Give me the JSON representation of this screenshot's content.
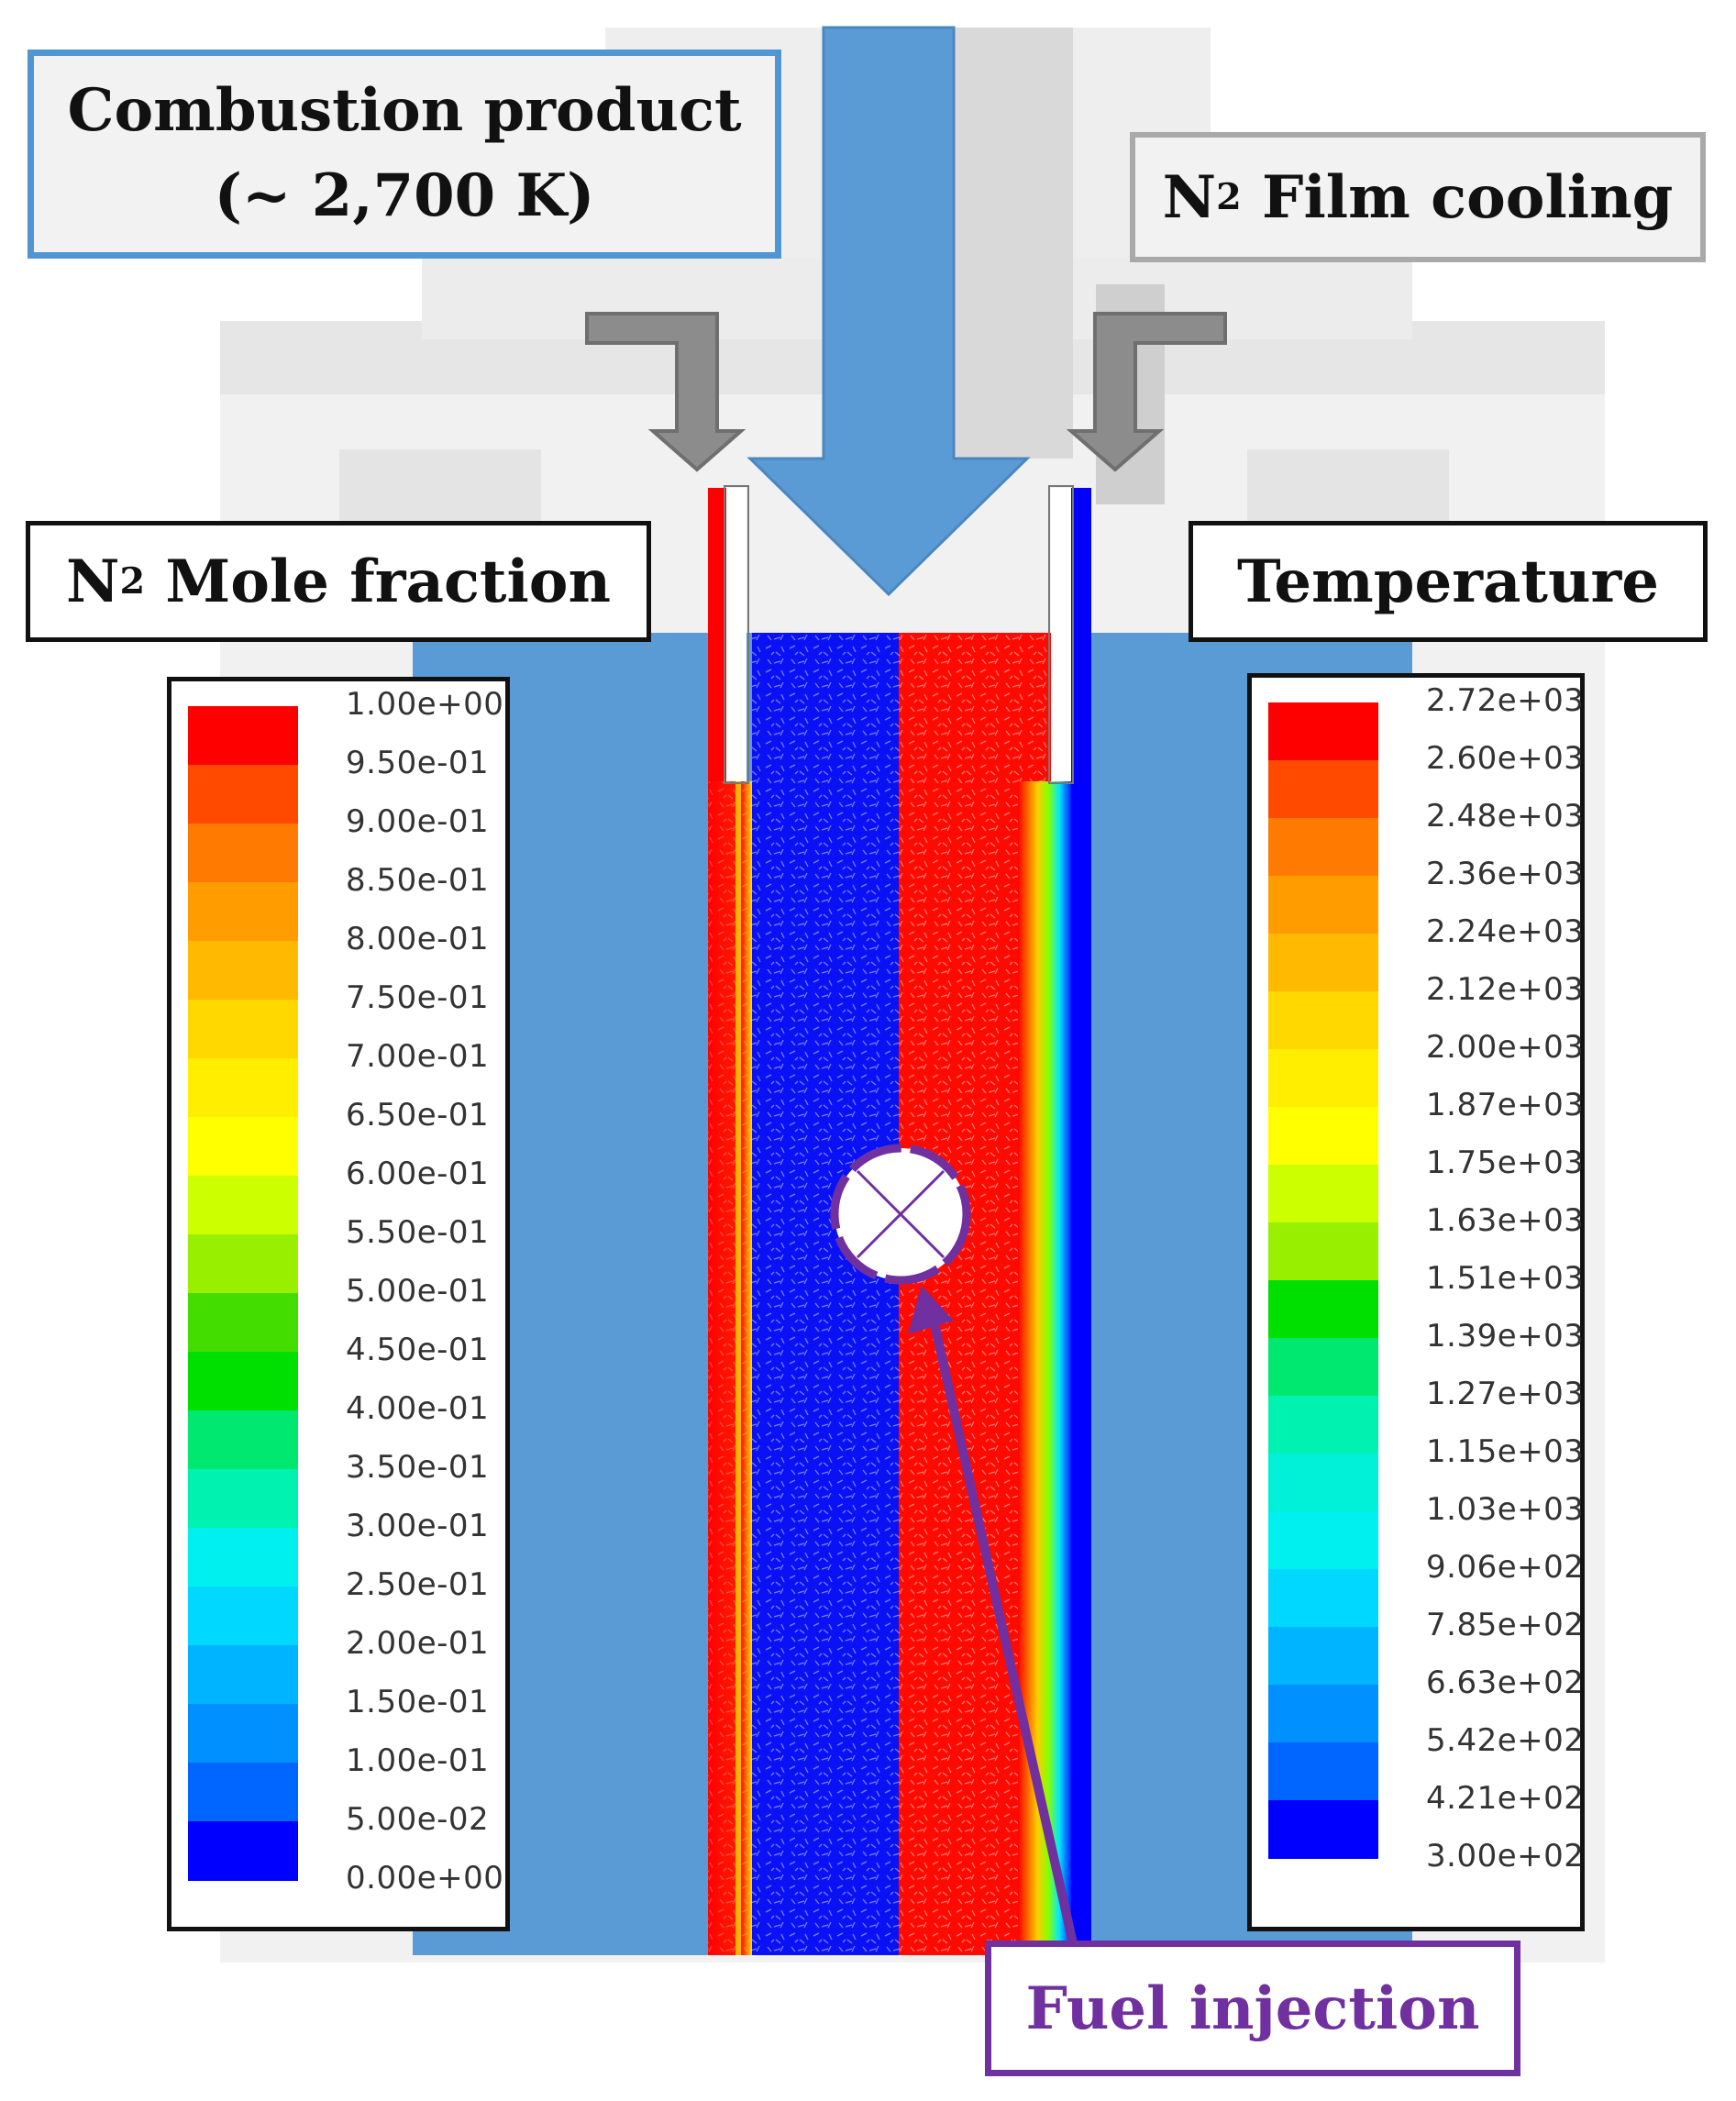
{
  "labels": {
    "combustion_line1": "Combustion product",
    "combustion_line2": "(~ 2,700 K)",
    "film_prefix": "N",
    "film_sub": "2",
    "film_suffix": " Film cooling",
    "mole_prefix": "N",
    "mole_sub": "2",
    "mole_suffix": " Mole fraction",
    "temperature": "Temperature",
    "fuel": "Fuel injection"
  },
  "legend_mole": {
    "ticks": [
      "1.00e+00",
      "9.50e-01",
      "9.00e-01",
      "8.50e-01",
      "8.00e-01",
      "7.50e-01",
      "7.00e-01",
      "6.50e-01",
      "6.00e-01",
      "5.50e-01",
      "5.00e-01",
      "4.50e-01",
      "4.00e-01",
      "3.50e-01",
      "3.00e-01",
      "2.50e-01",
      "2.00e-01",
      "1.50e-01",
      "1.00e-01",
      "5.00e-02",
      "0.00e+00"
    ],
    "colors": [
      "#ff0000",
      "#ff4a00",
      "#ff7a00",
      "#ff9c00",
      "#ffba00",
      "#ffd800",
      "#ffee00",
      "#ffff00",
      "#ccff00",
      "#99ef00",
      "#44dd00",
      "#00e000",
      "#00e870",
      "#00f2b0",
      "#00f0f0",
      "#00d8ff",
      "#00b4ff",
      "#0090ff",
      "#0066ff",
      "#0000ff"
    ]
  },
  "legend_temp": {
    "ticks": [
      "2.72e+03",
      "2.60e+03",
      "2.48e+03",
      "2.36e+03",
      "2.24e+03",
      "2.12e+03",
      "2.00e+03",
      "1.87e+03",
      "1.75e+03",
      "1.63e+03",
      "1.51e+03",
      "1.39e+03",
      "1.27e+03",
      "1.15e+03",
      "1.03e+03",
      "9.06e+02",
      "7.85e+02",
      "6.63e+02",
      "5.42e+02",
      "4.21e+02",
      "3.00e+02"
    ],
    "colors": [
      "#ff0000",
      "#ff4a00",
      "#ff7a00",
      "#ff9c00",
      "#ffba00",
      "#ffd800",
      "#ffee00",
      "#ffff00",
      "#ccff00",
      "#99ef00",
      "#00e000",
      "#00e870",
      "#00f2b0",
      "#00f0d8",
      "#00f0f0",
      "#00d8ff",
      "#00b4ff",
      "#0090ff",
      "#0066ff",
      "#0000ff"
    ]
  },
  "colors": {
    "steel_blue": "#5b9bd5",
    "hot": "#ff0000",
    "cold": "#0000ff",
    "arrow_gray": "#8c8c8c",
    "fuel_purple": "#7030a0"
  }
}
